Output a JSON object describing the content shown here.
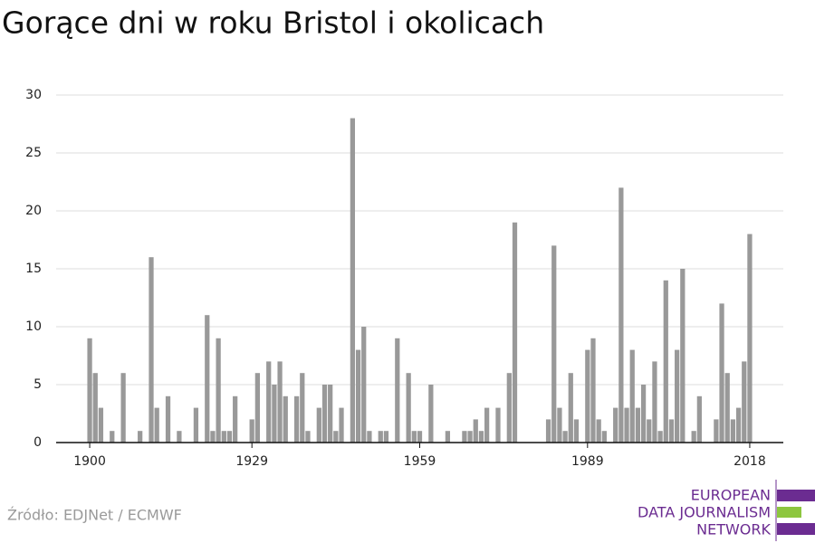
{
  "chart_data": {
    "type": "bar",
    "title": "Gorące dni w roku Bristol i okolicach",
    "x": [
      1900,
      1901,
      1902,
      1903,
      1904,
      1905,
      1906,
      1907,
      1908,
      1909,
      1910,
      1911,
      1912,
      1913,
      1914,
      1915,
      1916,
      1917,
      1918,
      1919,
      1920,
      1921,
      1922,
      1923,
      1924,
      1925,
      1926,
      1927,
      1928,
      1929,
      1930,
      1931,
      1932,
      1933,
      1934,
      1935,
      1936,
      1937,
      1938,
      1939,
      1940,
      1941,
      1942,
      1943,
      1944,
      1945,
      1946,
      1947,
      1948,
      1949,
      1950,
      1951,
      1952,
      1953,
      1954,
      1955,
      1956,
      1957,
      1958,
      1959,
      1960,
      1961,
      1962,
      1963,
      1964,
      1965,
      1966,
      1967,
      1968,
      1969,
      1970,
      1971,
      1972,
      1973,
      1974,
      1975,
      1976,
      1977,
      1978,
      1979,
      1980,
      1981,
      1982,
      1983,
      1984,
      1985,
      1986,
      1987,
      1988,
      1989,
      1990,
      1991,
      1992,
      1993,
      1994,
      1995,
      1996,
      1997,
      1998,
      1999,
      2000,
      2001,
      2002,
      2003,
      2004,
      2005,
      2006,
      2007,
      2008,
      2009,
      2010,
      2011,
      2012,
      2013,
      2014,
      2015,
      2016,
      2017,
      2018
    ],
    "values": [
      9,
      6,
      3,
      0,
      1,
      0,
      6,
      0,
      0,
      1,
      0,
      16,
      3,
      0,
      4,
      0,
      1,
      0,
      0,
      3,
      0,
      11,
      1,
      9,
      1,
      1,
      4,
      0,
      0,
      2,
      6,
      0,
      7,
      5,
      7,
      4,
      0,
      4,
      6,
      1,
      0,
      3,
      5,
      5,
      1,
      3,
      0,
      28,
      8,
      10,
      1,
      0,
      1,
      1,
      0,
      9,
      0,
      6,
      1,
      1,
      0,
      5,
      0,
      0,
      1,
      0,
      0,
      1,
      1,
      2,
      1,
      3,
      0,
      3,
      0,
      6,
      19,
      0,
      0,
      0,
      0,
      0,
      2,
      17,
      3,
      1,
      6,
      2,
      0,
      8,
      9,
      2,
      1,
      0,
      3,
      22,
      3,
      8,
      3,
      5,
      2,
      7,
      1,
      14,
      2,
      8,
      15,
      0,
      1,
      4,
      0,
      0,
      2,
      12,
      6,
      2,
      3,
      7,
      18
    ],
    "color": "#999999",
    "xlim": [
      1894,
      2024
    ],
    "xticks": [
      1900,
      1929,
      1959,
      1989,
      2018
    ],
    "ylim": [
      0,
      30
    ],
    "yticks": [
      0,
      5,
      10,
      15,
      20,
      25,
      30
    ],
    "grid": true,
    "source": "Źródło: EDJNet / ECMWF",
    "logo": [
      "EUROPEAN",
      "DATA JOURNALISM",
      "NETWORK"
    ]
  }
}
